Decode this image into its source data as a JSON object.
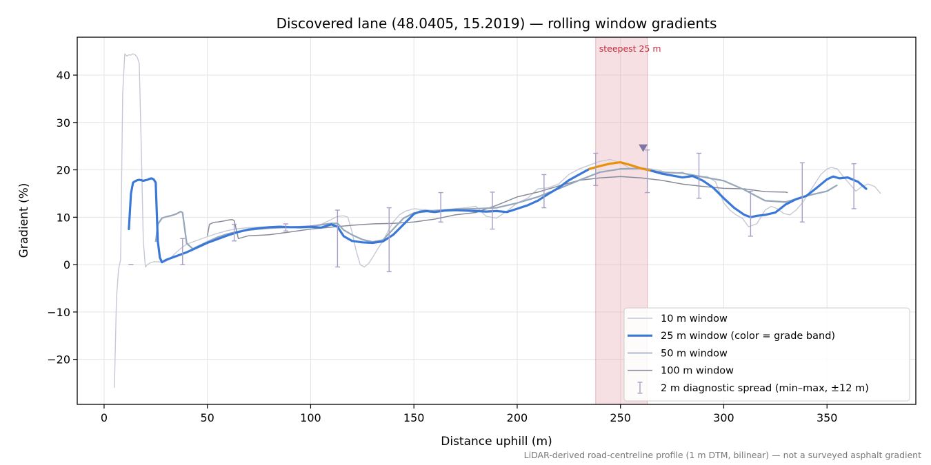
{
  "chart_data": {
    "type": "line",
    "title": "Discovered lane (48.0405, 15.2019) — rolling window gradients",
    "xlabel": "Distance uphill (m)",
    "ylabel": "Gradient (%)",
    "xlim": [
      -13,
      393
    ],
    "ylim": [
      -29.5,
      48
    ],
    "xticks": [
      0,
      50,
      100,
      150,
      200,
      250,
      300,
      350
    ],
    "yticks": [
      -20,
      -10,
      0,
      10,
      20,
      30,
      40
    ],
    "tick_labels": {
      "x": [
        "0",
        "50",
        "100",
        "150",
        "200",
        "250",
        "300",
        "350"
      ],
      "y": [
        "−20",
        "−10",
        "0",
        "10",
        "20",
        "30",
        "40"
      ]
    },
    "grid": true,
    "legend_position": "lower-right",
    "caption": "LiDAR-derived road-centreline profile (1 m DTM, bilinear) — not a surveyed asphalt gradient",
    "highlight": {
      "label": "steepest 25 m",
      "x_start": 238,
      "x_end": 263,
      "color": "#e8a5ae",
      "marker_x": 261,
      "marker_y": 24.5
    },
    "series": [
      {
        "name": "10 m window",
        "color": "#c4c9d4",
        "x": [
          5,
          6,
          7,
          8,
          9,
          10,
          11,
          12,
          13,
          14,
          15,
          16,
          17,
          18,
          19,
          20,
          21,
          22,
          24,
          26,
          28,
          30,
          32,
          34,
          36,
          38,
          40,
          45,
          50,
          55,
          60,
          65,
          70,
          75,
          80,
          85,
          90,
          95,
          100,
          105,
          110,
          113,
          116,
          118,
          120,
          122,
          124,
          126,
          128,
          130,
          132,
          135,
          138,
          140,
          143,
          146,
          150,
          155,
          160,
          165,
          170,
          175,
          180,
          185,
          190,
          195,
          200,
          205,
          210,
          215,
          220,
          225,
          230,
          235,
          240,
          245,
          250,
          255,
          260,
          265,
          268,
          272,
          276,
          280,
          284,
          288,
          292,
          296,
          300,
          303,
          306,
          309,
          312,
          314,
          316,
          320,
          323,
          326,
          329,
          332,
          335,
          338,
          341,
          344,
          347,
          350,
          352,
          355,
          358,
          361,
          364,
          367,
          370,
          373,
          376
        ],
        "values": [
          -26,
          -7,
          -1,
          1,
          36,
          44.5,
          44,
          44.3,
          44.2,
          44.5,
          44.3,
          43.8,
          42.5,
          25,
          5,
          -0.5,
          0,
          0.3,
          0.6,
          0.6,
          0.5,
          0.7,
          1.3,
          2.2,
          3,
          3.7,
          4.3,
          5.1,
          5.9,
          6.6,
          7.2,
          7.6,
          7.8,
          7.9,
          8,
          7.9,
          7.8,
          7.7,
          7.8,
          8.5,
          9.5,
          10.2,
          10.3,
          10,
          7,
          3,
          0,
          -0.5,
          0.2,
          1.5,
          3,
          5,
          7.5,
          9,
          10.5,
          11.3,
          11.8,
          11.6,
          11.4,
          11.5,
          11.8,
          12,
          12.3,
          10.2,
          9.8,
          11.3,
          13,
          14,
          16,
          16.2,
          17,
          19,
          20.2,
          21,
          21.8,
          22.2,
          21.5,
          20.2,
          20.5,
          20.2,
          20,
          19.5,
          19.3,
          19.5,
          18.7,
          18.5,
          18.6,
          17.5,
          13,
          11.5,
          10.5,
          9.8,
          8,
          8.3,
          8.6,
          11.5,
          12.3,
          11.8,
          10.8,
          10.5,
          11.5,
          13,
          15,
          17,
          19,
          20.2,
          20.5,
          20.2,
          18.5,
          17,
          15.5,
          16.5,
          17,
          16.5,
          15
        ]
      },
      {
        "name": "25 m window (color = grade band)",
        "color": "#3a78d8",
        "highlight_color": "#e8900a",
        "highlight_range": [
          235,
          260
        ],
        "x": [
          12,
          13,
          14,
          15,
          16,
          17,
          18,
          19,
          20,
          21,
          22,
          23,
          24,
          25,
          26,
          27,
          28,
          30,
          35,
          40,
          45,
          50,
          55,
          60,
          65,
          70,
          75,
          80,
          85,
          90,
          95,
          100,
          105,
          110,
          113,
          116,
          120,
          125,
          130,
          135,
          140,
          145,
          148,
          150,
          153,
          156,
          160,
          165,
          170,
          175,
          180,
          185,
          190,
          195,
          200,
          205,
          210,
          215,
          220,
          225,
          230,
          235,
          240,
          245,
          250,
          255,
          260,
          265,
          270,
          275,
          280,
          285,
          290,
          295,
          300,
          305,
          310,
          313,
          316,
          320,
          325,
          330,
          335,
          340,
          345,
          350,
          353,
          356,
          360,
          365,
          369
        ],
        "values": [
          7.5,
          15,
          17.3,
          17.6,
          17.8,
          17.9,
          17.8,
          17.7,
          17.8,
          17.9,
          18.1,
          18.2,
          18.0,
          17.3,
          5,
          1.5,
          0.5,
          1,
          1.8,
          2.6,
          3.6,
          4.6,
          5.4,
          6.2,
          6.9,
          7.4,
          7.7,
          7.9,
          8,
          7.9,
          7.9,
          8,
          7.8,
          8.5,
          8,
          6,
          5,
          4.7,
          4.6,
          4.9,
          6.3,
          8.5,
          9.8,
          10.7,
          11.2,
          11.3,
          11.1,
          11.4,
          11.5,
          11.4,
          11.3,
          11.2,
          11.3,
          11.1,
          11.8,
          12.5,
          13.5,
          14.9,
          16.2,
          17.8,
          19,
          20.2,
          20.8,
          21.3,
          21.6,
          21,
          20.3,
          19.8,
          19.2,
          18.8,
          18.4,
          18.7,
          17.7,
          16.2,
          14,
          12,
          10.5,
          10,
          10.3,
          10.5,
          11,
          12.7,
          13.8,
          14.5,
          16.2,
          18,
          18.6,
          18.2,
          18.4,
          17.5,
          16
        ]
      },
      {
        "name": "50 m window",
        "color": "#98a8bc",
        "x": [
          25,
          26,
          28,
          30,
          33,
          35,
          37,
          38,
          40,
          43,
          45,
          50,
          55,
          60,
          65,
          70,
          75,
          80,
          90,
          100,
          105,
          110,
          113,
          116,
          120,
          125,
          130,
          135,
          140,
          145,
          150,
          160,
          170,
          180,
          190,
          200,
          210,
          220,
          230,
          240,
          250,
          260,
          270,
          280,
          290,
          300,
          310,
          320,
          330,
          340,
          350,
          355
        ],
        "values": [
          4.8,
          8.5,
          9.8,
          10.1,
          10.4,
          10.7,
          11.2,
          11,
          4.5,
          3.3,
          3.8,
          4.8,
          5.8,
          6.5,
          7,
          7.3,
          7.5,
          7.7,
          7.9,
          8.1,
          8.4,
          8.7,
          8.7,
          7.3,
          6.3,
          5.3,
          4.8,
          5.2,
          7.5,
          9.8,
          10.9,
          11.4,
          11.7,
          11.8,
          12,
          13,
          14.3,
          16,
          17.8,
          19.5,
          20.2,
          20.3,
          19.5,
          19.3,
          18.5,
          17.7,
          15.8,
          13.5,
          13.2,
          14.5,
          15.5,
          16.8
        ]
      },
      {
        "name": "100 m window",
        "color": "#868b98",
        "x": [
          50,
          51,
          53,
          55,
          58,
          60,
          62,
          63,
          65,
          70,
          80,
          90,
          100,
          110,
          120,
          130,
          140,
          150,
          160,
          170,
          180,
          190,
          200,
          210,
          220,
          230,
          240,
          250,
          260,
          270,
          280,
          290,
          300,
          310,
          320,
          330,
          331
        ],
        "values": [
          6.1,
          8.5,
          8.9,
          9,
          9.2,
          9.4,
          9.5,
          9.3,
          5.5,
          6.1,
          6.3,
          6.9,
          7.5,
          7.9,
          8.3,
          8.6,
          8.7,
          9,
          9.6,
          10.5,
          11,
          12.5,
          14.3,
          15.3,
          16.6,
          17.8,
          18.3,
          18.6,
          18.3,
          17.8,
          17,
          16.5,
          16.1,
          16,
          15.4,
          15.3,
          15.2
        ]
      },
      {
        "name": "2 m diagnostic spread (min–max, ±12 m)",
        "color": "#a89ec6",
        "type": "errorbar",
        "x": [
          13,
          38,
          63,
          88,
          113,
          138,
          163,
          188,
          213,
          238,
          263,
          288,
          313,
          338,
          363
        ],
        "lo": [
          0,
          0,
          5,
          7.1,
          -0.5,
          -1.5,
          9,
          7.5,
          12,
          16.7,
          15.2,
          14,
          6,
          9,
          11.8
        ],
        "hi": [
          0,
          5.5,
          8.5,
          8.6,
          11.5,
          12,
          15.2,
          15.3,
          19,
          23.5,
          24.2,
          23.5,
          15.5,
          21.5,
          21.3
        ]
      }
    ]
  }
}
